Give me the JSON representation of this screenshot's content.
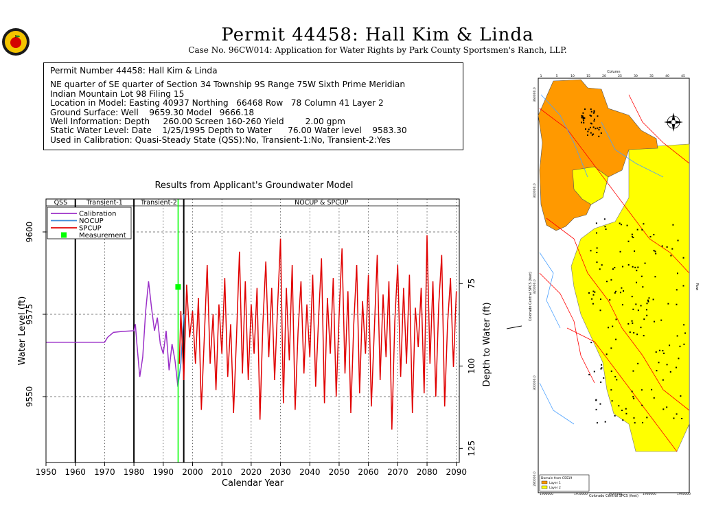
{
  "header": {
    "title": "Permit  44458:   Hall Kim & Linda",
    "subtitle": "Case No. 96CW014: Application for Water Rights by Park County Sportsmen's Ranch, LLP."
  },
  "info": {
    "lines": [
      "Permit Number 44458: Hall Kim & Linda",
      "NE quarter of SE quarter of Section 34 Township 9S Range 75W Sixth Prime Meridian",
      "Indian Mountain Lot 98 Filing 15",
      "Location in Model: Easting 40937 Northing   66468 Row   78 Column 41 Layer 2",
      "Ground Surface: Well    9659.30 Model   9666.18",
      "Well Information: Depth     260.00 Screen 160-260 Yield        2.00 gpm",
      "Static Water Level: Date    1/25/1995 Depth to Water      76.00 Water level    9583.30",
      "Used in Calibration: Quasi-Steady State (QSS):No, Transient-1:No, Transient-2:Yes"
    ]
  },
  "chart_data": {
    "type": "line",
    "title": "Results from Applicant's Groundwater Model",
    "xlabel": "Calendar Year",
    "ylabel": "Water Level (ft)",
    "y2label": "Depth to Water (ft)",
    "xlim": [
      1950,
      2091
    ],
    "ylim": [
      9530,
      9610
    ],
    "x_ticks": [
      1950,
      1960,
      1970,
      1980,
      1990,
      2000,
      2010,
      2020,
      2030,
      2040,
      2050,
      2060,
      2070,
      2080,
      2090
    ],
    "y_ticks": [
      9550,
      9575,
      9600
    ],
    "y2_ticks": [
      75,
      100,
      125
    ],
    "ground_surface": 9659.3,
    "periods": [
      {
        "label": "QSS",
        "start": 1950,
        "end": 1960
      },
      {
        "label": "Transient-1",
        "start": 1960,
        "end": 1980
      },
      {
        "label": "Transient-2",
        "start": 1980,
        "end": 1997
      },
      {
        "label": "NOCUP & SPCUP",
        "start": 1997,
        "end": 2091
      }
    ],
    "legend": [
      "Calibration",
      "NOCUP",
      "SPCUP",
      "Measurement"
    ],
    "series": [
      {
        "name": "Calibration",
        "color": "#9b30c8",
        "x": [
          1950,
          1970,
          1971,
          1973,
          1976,
          1980,
          1980.5,
          1981,
          1982,
          1983,
          1984,
          1985,
          1986,
          1987,
          1988,
          1989,
          1990,
          1991,
          1992,
          1993,
          1994,
          1995
        ],
        "y": [
          9566.5,
          9566.5,
          9568,
          9569.5,
          9569.8,
          9570,
          9572,
          9566,
          9556,
          9562,
          9576,
          9585,
          9577,
          9570,
          9574,
          9566,
          9563,
          9570,
          9558,
          9566,
          9561,
          9553
        ]
      },
      {
        "name": "NOCUP",
        "color": "#3a8ad8",
        "x": [
          1995,
          1996,
          1997
        ],
        "y": [
          9553,
          9560,
          9575
        ]
      },
      {
        "name": "SPCUP",
        "color": "#e00000",
        "x": [
          1995.5,
          1996,
          1997,
          1998,
          1999,
          2000,
          2001,
          2002,
          2003,
          2004,
          2005,
          2006,
          2007,
          2008,
          2009,
          2010,
          2011,
          2012,
          2013,
          2014,
          2015,
          2016,
          2017,
          2018,
          2019,
          2020,
          2021,
          2022,
          2023,
          2024,
          2025,
          2026,
          2027,
          2028,
          2029,
          2030,
          2031,
          2032,
          2033,
          2034,
          2035,
          2036,
          2037,
          2038,
          2039,
          2040,
          2041,
          2042,
          2043,
          2044,
          2045,
          2046,
          2047,
          2048,
          2049,
          2050,
          2051,
          2052,
          2053,
          2054,
          2055,
          2056,
          2057,
          2058,
          2059,
          2060,
          2061,
          2062,
          2063,
          2064,
          2065,
          2066,
          2067,
          2068,
          2069,
          2070,
          2071,
          2072,
          2073,
          2074,
          2075,
          2076,
          2077,
          2078,
          2079,
          2080,
          2081,
          2082,
          2083,
          2084,
          2085,
          2086,
          2087,
          2088,
          2089,
          2090
        ],
        "y": [
          9560,
          9576,
          9555,
          9584,
          9568,
          9576,
          9560,
          9580,
          9546,
          9568,
          9590,
          9560,
          9575,
          9552,
          9578,
          9563,
          9586,
          9556,
          9572,
          9545,
          9568,
          9594,
          9557,
          9585,
          9555,
          9578,
          9563,
          9583,
          9543,
          9572,
          9591,
          9562,
          9583,
          9555,
          9577,
          9598,
          9548,
          9583,
          9561,
          9590,
          9546,
          9570,
          9585,
          9557,
          9578,
          9562,
          9587,
          9553,
          9574,
          9592,
          9548,
          9580,
          9563,
          9586,
          9550,
          9575,
          9595,
          9557,
          9582,
          9545,
          9572,
          9590,
          9551,
          9579,
          9563,
          9587,
          9547,
          9570,
          9593,
          9555,
          9581,
          9562,
          9585,
          9540,
          9573,
          9590,
          9556,
          9583,
          9560,
          9587,
          9545,
          9577,
          9565,
          9583,
          9551,
          9599,
          9560,
          9585,
          9550,
          9578,
          9593,
          9547,
          9572,
          9586,
          9559,
          9582
        ]
      },
      {
        "name": "Measurement",
        "color": "#00ff00",
        "x": [
          1995.07
        ],
        "y": [
          9583.3
        ]
      }
    ]
  },
  "map": {
    "axis_top": "Column",
    "axis_left": "Colorado Central SPCS (feet)",
    "axis_bottom": "Colorado Central SPCS (feet)",
    "axis_right": "Row",
    "domain_label": "Domain from CSS19",
    "layer1": "Layer 1",
    "layer2": "Layer 2",
    "column_ticks": [
      "1",
      "5",
      "10",
      "15",
      "20",
      "25",
      "30",
      "35",
      "40",
      "45"
    ],
    "x_coord_ticks": [
      "1900000",
      "1910000",
      "1920000",
      "1930000",
      "1940000"
    ],
    "y_coord_ticks": [
      "360000.0",
      "340000.0",
      "320000.0",
      "300000.0",
      "280000.0"
    ],
    "colors": {
      "layer1": "#ff9900",
      "layer2": "#ffff00",
      "river": "#ff0000",
      "stream": "#4aa0ff"
    }
  }
}
